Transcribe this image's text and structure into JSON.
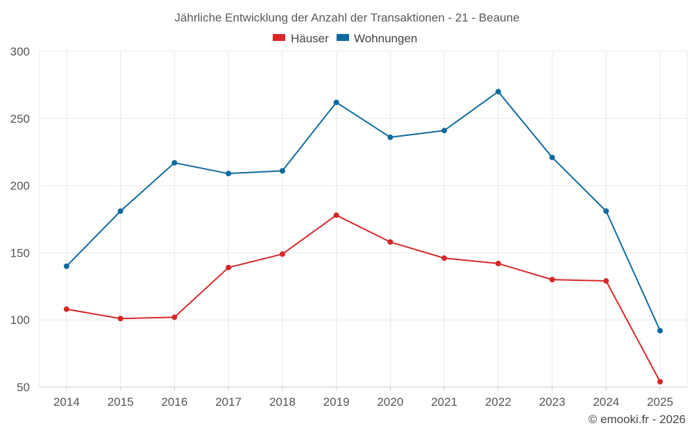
{
  "chart_data": {
    "type": "line",
    "title": "Jährliche Entwicklung der Anzahl der Transaktionen - 21 - Beaune",
    "categories": [
      "2014",
      "2015",
      "2016",
      "2017",
      "2018",
      "2019",
      "2020",
      "2021",
      "2022",
      "2023",
      "2024",
      "2025"
    ],
    "series": [
      {
        "name": "Häuser",
        "color": "#d62728",
        "values": [
          108,
          101,
          102,
          139,
          149,
          178,
          158,
          146,
          142,
          130,
          129,
          54
        ]
      },
      {
        "name": "Wohnungen",
        "color": "#0d6aa0",
        "values": [
          140,
          181,
          217,
          209,
          211,
          262,
          236,
          241,
          270,
          221,
          181,
          92
        ]
      }
    ],
    "xlabel": "",
    "ylabel": "",
    "ylim": [
      50,
      300
    ],
    "yticks": [
      50,
      100,
      150,
      200,
      250,
      300
    ],
    "grid": true,
    "legend_position": "top-center"
  },
  "credit": "© emooki.fr - 2026"
}
